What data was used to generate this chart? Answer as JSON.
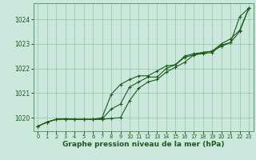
{
  "background_color": "#cce8dc",
  "plot_bg_color": "#cce8dc",
  "grid_color": "#99ccb3",
  "line_color": "#1a5c1a",
  "title": "Graphe pression niveau de la mer (hPa)",
  "xlim": [
    -0.5,
    23.5
  ],
  "ylim": [
    1019.45,
    1024.65
  ],
  "yticks": [
    1020,
    1021,
    1022,
    1023,
    1024
  ],
  "xticks": [
    0,
    1,
    2,
    3,
    4,
    5,
    6,
    7,
    8,
    9,
    10,
    11,
    12,
    13,
    14,
    15,
    16,
    17,
    18,
    19,
    20,
    21,
    22,
    23
  ],
  "series1": [
    1019.65,
    1019.82,
    1019.93,
    1019.95,
    1019.93,
    1019.93,
    1019.93,
    1019.93,
    1019.97,
    1020.0,
    1020.7,
    1021.2,
    1021.45,
    1021.55,
    1021.85,
    1022.05,
    1022.25,
    1022.55,
    1022.6,
    1022.65,
    1022.95,
    1023.05,
    1023.5,
    1024.45
  ],
  "series2": [
    1019.65,
    1019.82,
    1019.93,
    1019.95,
    1019.93,
    1019.93,
    1019.93,
    1019.95,
    1020.35,
    1020.55,
    1021.25,
    1021.45,
    1021.65,
    1021.65,
    1022.0,
    1022.15,
    1022.45,
    1022.55,
    1022.65,
    1022.7,
    1023.0,
    1023.2,
    1023.55,
    1024.45
  ],
  "series3": [
    1019.65,
    1019.82,
    1019.93,
    1019.95,
    1019.93,
    1019.93,
    1019.93,
    1020.0,
    1020.95,
    1021.35,
    1021.55,
    1021.7,
    1021.7,
    1021.9,
    1022.1,
    1022.15,
    1022.5,
    1022.6,
    1022.65,
    1022.7,
    1022.9,
    1023.05,
    1024.1,
    1024.45
  ],
  "ytick_fontsize": 5.5,
  "xtick_fontsize": 4.8,
  "title_fontsize": 6.5
}
